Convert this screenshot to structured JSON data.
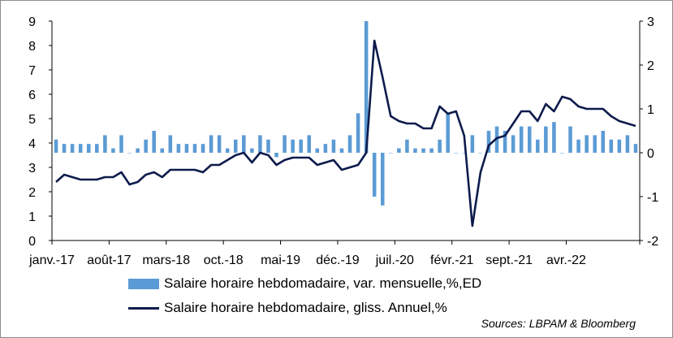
{
  "chart_data": {
    "type": "bar+line",
    "source": "Sources: LBPAM & Bloomberg",
    "left_axis": {
      "ylim": [
        0,
        9
      ],
      "ticks": [
        "0",
        "1",
        "2",
        "3",
        "4",
        "5",
        "6",
        "7",
        "8",
        "9"
      ]
    },
    "right_axis": {
      "ylim": [
        -2,
        3
      ],
      "ticks": [
        "-2",
        "-1",
        "0",
        "1",
        "2",
        "3"
      ]
    },
    "x_tick_labels": [
      "janv.-17",
      "août-17",
      "mars-18",
      "oct.-18",
      "mai-19",
      "déc.-19",
      "juil.-20",
      "févr.-21",
      "sept.-21",
      "avr.-22"
    ],
    "x_tick_start_index": 0,
    "x_tick_step": 7,
    "months": [
      "2017-01",
      "2017-02",
      "2017-03",
      "2017-04",
      "2017-05",
      "2017-06",
      "2017-07",
      "2017-08",
      "2017-09",
      "2017-10",
      "2017-11",
      "2017-12",
      "2018-01",
      "2018-02",
      "2018-03",
      "2018-04",
      "2018-05",
      "2018-06",
      "2018-07",
      "2018-08",
      "2018-09",
      "2018-10",
      "2018-11",
      "2018-12",
      "2019-01",
      "2019-02",
      "2019-03",
      "2019-04",
      "2019-05",
      "2019-06",
      "2019-07",
      "2019-08",
      "2019-09",
      "2019-10",
      "2019-11",
      "2019-12",
      "2020-01",
      "2020-02",
      "2020-03",
      "2020-04",
      "2020-05",
      "2020-06",
      "2020-07",
      "2020-08",
      "2020-09",
      "2020-10",
      "2020-11",
      "2020-12",
      "2021-01",
      "2021-02",
      "2021-03",
      "2021-04",
      "2021-05",
      "2021-06",
      "2021-07",
      "2021-08",
      "2021-09",
      "2021-10",
      "2021-11",
      "2021-12",
      "2022-01",
      "2022-02",
      "2022-03",
      "2022-04",
      "2022-05",
      "2022-06",
      "2022-07",
      "2022-08",
      "2022-09",
      "2022-10",
      "2022-11",
      "2022-12"
    ],
    "series": [
      {
        "name": "Salaire horaire hebdomadaire, var. mensuelle,%,ED",
        "kind": "bar",
        "axis": "right",
        "color": "#5b9bd5",
        "values": [
          0.3,
          0.2,
          0.2,
          0.2,
          0.2,
          0.2,
          0.4,
          0.1,
          0.4,
          0.0,
          0.1,
          0.3,
          0.5,
          0.1,
          0.4,
          0.2,
          0.2,
          0.2,
          0.2,
          0.4,
          0.4,
          0.1,
          0.3,
          0.4,
          0.1,
          0.4,
          0.3,
          -0.1,
          0.4,
          0.3,
          0.3,
          0.4,
          0.1,
          0.2,
          0.3,
          0.1,
          0.4,
          0.9,
          3.0,
          -1.0,
          -1.2,
          0.0,
          0.1,
          0.3,
          0.1,
          0.1,
          0.1,
          0.3,
          0.9,
          0.0,
          0.0,
          0.4,
          0.0,
          0.5,
          0.6,
          0.5,
          0.4,
          0.6,
          0.6,
          0.3,
          0.6,
          0.7,
          0.0,
          0.6,
          0.3,
          0.4,
          0.4,
          0.5,
          0.3,
          0.3,
          0.4,
          0.2
        ]
      },
      {
        "name": "Salaire horaire hebdomadaire, gliss. Annuel,%",
        "kind": "line",
        "axis": "left",
        "color": "#0d1b4c",
        "values": [
          2.4,
          2.7,
          2.6,
          2.5,
          2.5,
          2.5,
          2.6,
          2.6,
          2.8,
          2.3,
          2.4,
          2.7,
          2.8,
          2.6,
          2.9,
          2.9,
          2.9,
          2.9,
          2.8,
          3.1,
          3.1,
          3.3,
          3.5,
          3.6,
          3.2,
          3.6,
          3.5,
          3.1,
          3.3,
          3.4,
          3.4,
          3.4,
          3.1,
          3.2,
          3.3,
          2.9,
          3.0,
          3.1,
          3.6,
          8.2,
          6.7,
          5.1,
          4.9,
          4.8,
          4.8,
          4.6,
          4.6,
          5.5,
          5.2,
          5.3,
          4.3,
          0.6,
          2.8,
          3.9,
          4.2,
          4.3,
          4.8,
          5.3,
          5.3,
          4.9,
          5.6,
          5.3,
          5.9,
          5.8,
          5.5,
          5.4,
          5.4,
          5.4,
          5.1,
          4.9,
          4.8,
          4.7
        ]
      }
    ]
  }
}
